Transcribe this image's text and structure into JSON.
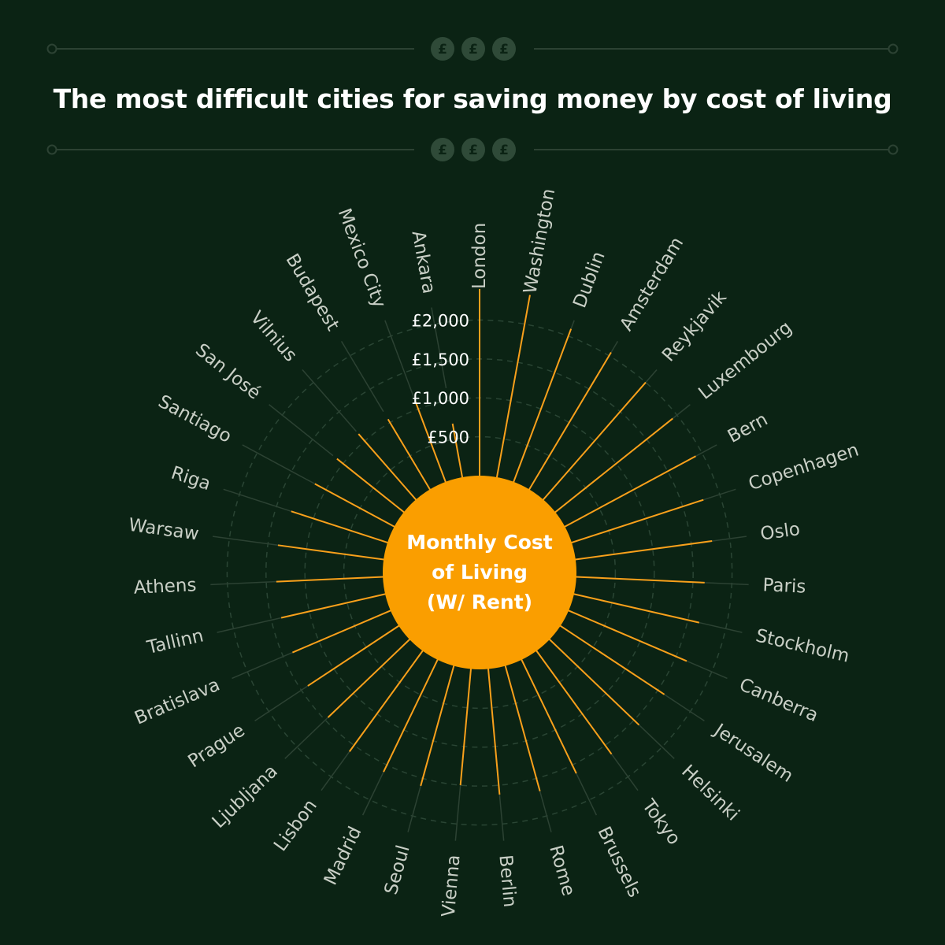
{
  "title": "The most difficult cities for saving money by cost of living",
  "center_label": {
    "line1": "Monthly Cost",
    "line2": "of Living",
    "line3": "(W/ Rent)"
  },
  "decoration": {
    "coin_symbol": "£",
    "coin_icon": "pound-coin-icon"
  },
  "colors": {
    "background": "#0b2314",
    "accent": "#f9a01b",
    "grid": "#2a4534",
    "guide": "#2c4233",
    "label": "#c9cfc6",
    "coin": "#2f4a38"
  },
  "chart_data": {
    "type": "radial-bar",
    "series_name": "Monthly Cost of Living (W/ Rent)",
    "rmax": 2500,
    "ticks": [
      500,
      1000,
      1500,
      2000
    ],
    "tick_labels": [
      "£500",
      "£1,000",
      "£1,500",
      "£2,000"
    ],
    "grid": true,
    "categories": [
      "London",
      "Washington",
      "Dublin",
      "Amsterdam",
      "Reykjavik",
      "Luxembourg",
      "Bern",
      "Copenhagen",
      "Oslo",
      "Paris",
      "Stockholm",
      "Canberra",
      "Jerusalem",
      "Helsinki",
      "Tokyo",
      "Brussels",
      "Rome",
      "Berlin",
      "Vienna",
      "Seoul",
      "Madrid",
      "Lisbon",
      "Ljubljana",
      "Prague",
      "Bratislava",
      "Tallinn",
      "Athens",
      "Warsaw",
      "Riga",
      "Santiago",
      "San José",
      "Vilnius",
      "Budapest",
      "Mexico City",
      "Ankara"
    ],
    "values": [
      2400,
      2380,
      2100,
      2050,
      2000,
      1930,
      1910,
      1780,
      1770,
      1650,
      1650,
      1650,
      1600,
      1590,
      1640,
      1620,
      1670,
      1620,
      1500,
      1600,
      1600,
      1600,
      1450,
      1400,
      1370,
      1370,
      1370,
      1370,
      1300,
      1160,
      1100,
      1120,
      1050,
      1100,
      700
    ]
  }
}
